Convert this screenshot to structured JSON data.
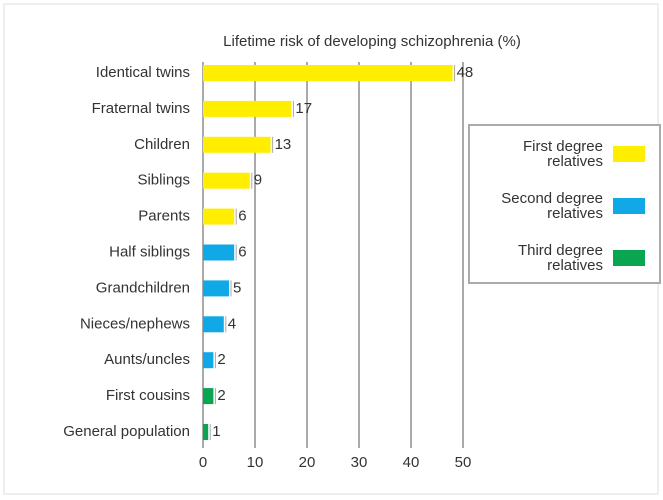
{
  "chart_data": {
    "type": "bar",
    "orientation": "horizontal",
    "title": "Lifetime risk of developing schizophrenia (%)",
    "categories": [
      "Identical twins",
      "Fraternal twins",
      "Children",
      "Siblings",
      "Parents",
      "Half siblings",
      "Grandchildren",
      "Nieces/nephews",
      "Aunts/uncles",
      "First cousins",
      "General population"
    ],
    "series": [
      {
        "name": "First degree relatives",
        "color": "#ffee00",
        "values": [
          48,
          17,
          13,
          9,
          6,
          null,
          null,
          null,
          null,
          null,
          null
        ]
      },
      {
        "name": "Second degree relatives",
        "color": "#11a8e8",
        "values": [
          null,
          null,
          null,
          null,
          null,
          6,
          5,
          4,
          2,
          null,
          null
        ]
      },
      {
        "name": "Third degree relatives",
        "color": "#0aa550",
        "values": [
          null,
          null,
          null,
          null,
          null,
          null,
          null,
          null,
          null,
          2,
          1
        ]
      }
    ],
    "xlim": [
      0,
      50
    ],
    "xticks": [
      0,
      10,
      20,
      30,
      40,
      50
    ],
    "grid": true,
    "legend": "right"
  }
}
